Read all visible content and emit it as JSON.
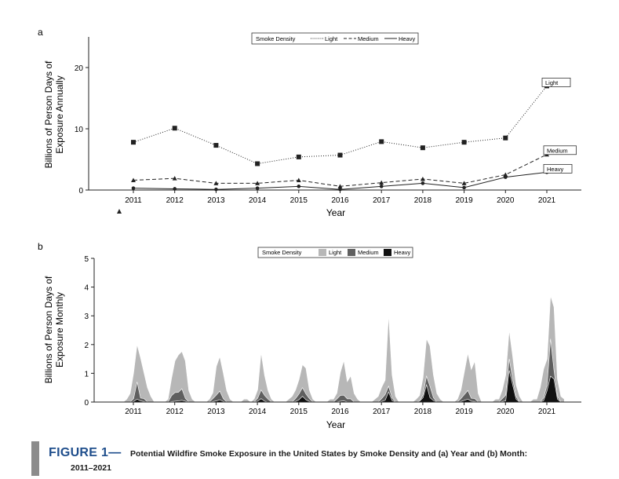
{
  "chart_data": [
    {
      "panel": "a",
      "type": "line",
      "ylabel_line1": "Billions of Person Days of",
      "ylabel_line2": "Exposure Annually",
      "xlabel": "Year",
      "x": [
        "2011",
        "2012",
        "2013",
        "2014",
        "2015",
        "2016",
        "2017",
        "2018",
        "2019",
        "2020",
        "2021"
      ],
      "ylim": [
        0,
        25
      ],
      "yticks": [
        0,
        10,
        20
      ],
      "legend_title": "Smoke Density",
      "series": [
        {
          "name": "Light",
          "style": "dotted",
          "marker": "square",
          "values": [
            7.8,
            10.1,
            7.3,
            4.3,
            5.4,
            5.7,
            7.9,
            6.9,
            7.8,
            8.5,
            17.0
          ]
        },
        {
          "name": "Medium",
          "style": "dashed",
          "marker": "triangle",
          "values": [
            1.6,
            1.9,
            1.1,
            1.1,
            1.6,
            0.6,
            1.2,
            1.8,
            1.1,
            2.5,
            5.8
          ]
        },
        {
          "name": "Heavy",
          "style": "solid",
          "marker": "circle",
          "values": [
            0.3,
            0.2,
            0.1,
            0.3,
            0.6,
            0.1,
            0.6,
            1.1,
            0.4,
            2.1,
            2.9
          ]
        }
      ],
      "end_labels": [
        "Light",
        "Medium",
        "Heavy"
      ]
    },
    {
      "panel": "b",
      "type": "area",
      "stacked": true,
      "ylabel_line1": "Billions of Person Days of",
      "ylabel_line2": "Exposure Monthly",
      "xlabel": "Year",
      "year_labels": [
        "2011",
        "2012",
        "2013",
        "2014",
        "2015",
        "2016",
        "2017",
        "2018",
        "2019",
        "2020",
        "2021"
      ],
      "ylim": [
        0,
        5
      ],
      "yticks": [
        0,
        1,
        2,
        3,
        4,
        5
      ],
      "legend_title": "Smoke Density",
      "series": [
        {
          "name": "Light",
          "color": "#b7b7b7",
          "values": [
            0,
            0,
            0,
            0,
            0.1,
            0.3,
            0.9,
            1.3,
            1.4,
            0.9,
            0.5,
            0.2,
            0,
            0,
            0,
            0,
            0.1,
            0.6,
            1.1,
            1.3,
            1.3,
            1.3,
            0.4,
            0.1,
            0,
            0,
            0,
            0,
            0.1,
            0.2,
            1.0,
            1.2,
            0.9,
            0.4,
            0.1,
            0,
            0,
            0,
            0.1,
            0.1,
            0,
            0.1,
            0.3,
            1.3,
            0.7,
            0.3,
            0.1,
            0,
            0,
            0,
            0,
            0.1,
            0.2,
            0.3,
            0.5,
            0.8,
            0.9,
            0.3,
            0.1,
            0,
            0,
            0,
            0,
            0.1,
            0.1,
            0.2,
            0.8,
            1.2,
            0.6,
            0.8,
            0.3,
            0.1,
            0,
            0,
            0,
            0,
            0.1,
            0.2,
            0.4,
            0.5,
            2.5,
            0.8,
            0.2,
            0,
            0,
            0,
            0,
            0,
            0.1,
            0.2,
            0.6,
            1.3,
            1.4,
            0.8,
            0.3,
            0.1,
            0,
            0,
            0,
            0,
            0.1,
            0.3,
            0.8,
            1.3,
            1.0,
            1.3,
            0.3,
            0,
            0,
            0,
            0,
            0.1,
            0.1,
            0.3,
            0.7,
            1.0,
            0.8,
            0.4,
            0.2,
            0,
            0,
            0,
            0.1,
            0.1,
            0.5,
            1.0,
            0.9,
            1.5,
            2.2,
            0.6,
            0.2,
            0.1
          ]
        },
        {
          "name": "Medium",
          "color": "#5f5f5f",
          "values": [
            0,
            0,
            0,
            0,
            0,
            0,
            0.1,
            0.6,
            0.1,
            0.1,
            0,
            0,
            0,
            0,
            0,
            0,
            0,
            0.2,
            0.3,
            0.3,
            0.4,
            0.1,
            0,
            0,
            0,
            0,
            0,
            0,
            0,
            0.1,
            0.2,
            0.3,
            0.1,
            0,
            0,
            0,
            0,
            0,
            0,
            0,
            0,
            0,
            0.1,
            0.3,
            0.2,
            0.1,
            0,
            0,
            0,
            0,
            0,
            0,
            0,
            0.1,
            0.2,
            0.3,
            0.2,
            0.1,
            0,
            0,
            0,
            0,
            0,
            0,
            0,
            0.1,
            0.2,
            0.2,
            0.1,
            0.1,
            0,
            0,
            0,
            0,
            0,
            0,
            0,
            0,
            0.1,
            0.2,
            0.2,
            0.1,
            0,
            0,
            0,
            0,
            0,
            0,
            0,
            0,
            0.1,
            0.3,
            0.4,
            0.1,
            0,
            0,
            0,
            0,
            0,
            0,
            0,
            0.1,
            0.2,
            0.3,
            0.1,
            0.1,
            0,
            0,
            0,
            0,
            0,
            0,
            0,
            0.1,
            0.2,
            0.4,
            0.2,
            0.1,
            0,
            0,
            0,
            0,
            0,
            0,
            0,
            0.1,
            0.2,
            1.3,
            0.3,
            0.1,
            0,
            0
          ]
        },
        {
          "name": "Heavy",
          "color": "#111111",
          "values": [
            0,
            0,
            0,
            0,
            0,
            0,
            0.02,
            0.1,
            0.04,
            0.02,
            0,
            0,
            0,
            0,
            0,
            0,
            0,
            0.02,
            0.03,
            0.04,
            0.06,
            0.03,
            0,
            0,
            0,
            0,
            0,
            0,
            0,
            0.02,
            0.04,
            0.08,
            0.02,
            0,
            0,
            0,
            0,
            0,
            0,
            0,
            0,
            0.01,
            0.03,
            0.12,
            0.03,
            0,
            0,
            0,
            0,
            0,
            0,
            0,
            0,
            0.02,
            0.08,
            0.2,
            0.08,
            0.02,
            0,
            0,
            0,
            0,
            0,
            0,
            0,
            0.01,
            0.03,
            0.04,
            0.01,
            0.01,
            0,
            0,
            0,
            0,
            0,
            0,
            0,
            0,
            0.02,
            0.06,
            0.35,
            0.05,
            0,
            0,
            0,
            0,
            0,
            0,
            0,
            0.03,
            0.15,
            0.6,
            0.15,
            0.05,
            0,
            0,
            0,
            0,
            0,
            0,
            0,
            0.02,
            0.06,
            0.1,
            0.03,
            0.02,
            0,
            0,
            0,
            0,
            0,
            0,
            0,
            0.02,
            0.04,
            1.1,
            0.6,
            0.1,
            0,
            0,
            0,
            0,
            0,
            0,
            0,
            0.05,
            0.4,
            0.9,
            0.8,
            0.1,
            0,
            0
          ]
        }
      ]
    }
  ],
  "figure": {
    "label": "FIGURE 1—",
    "title_line1": "Potential Wildfire Smoke Exposure in the United States by Smoke Density and (a) Year and (b) Month:",
    "title_line2": "2011–2021"
  },
  "colors": {
    "caption_label": "#1f4e8c",
    "caption_bar": "#8c8c8c"
  }
}
